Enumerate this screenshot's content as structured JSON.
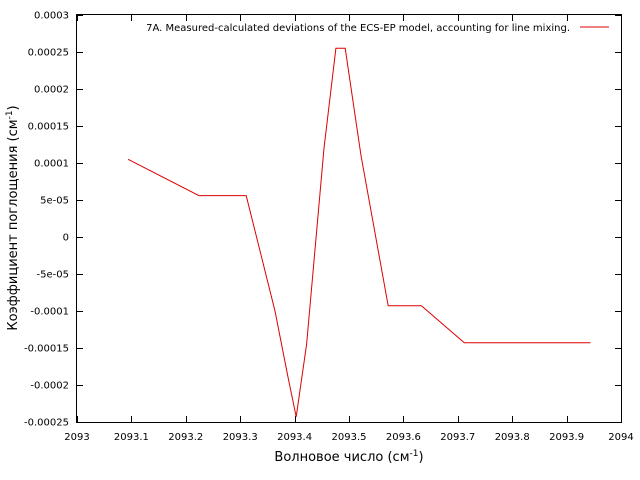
{
  "chart_data": {
    "type": "line",
    "xlabel": "Волновое число (см-1)",
    "xlabel_main": "Волновое число (см",
    "xlabel_sup": "-1",
    "xlabel_close": ")",
    "ylabel": "Коэффициент поглощения (см-1)",
    "ylabel_main": "Коэффициент поглощения (см",
    "ylabel_sup": "-1",
    "ylabel_close": ")",
    "xlim": [
      2093,
      2094
    ],
    "ylim": [
      -0.00025,
      0.0003
    ],
    "x_ticks": [
      2093,
      2093.1,
      2093.2,
      2093.3,
      2093.4,
      2093.5,
      2093.6,
      2093.7,
      2093.8,
      2093.9,
      2094
    ],
    "x_tick_labels": [
      "2093",
      "2093.1",
      "2093.2",
      "2093.3",
      "2093.4",
      "2093.5",
      "2093.6",
      "2093.7",
      "2093.8",
      "2093.9",
      "2094"
    ],
    "y_ticks": [
      -0.00025,
      -0.0002,
      -0.00015,
      -0.0001,
      -5e-05,
      0,
      5e-05,
      0.0001,
      0.00015,
      0.0002,
      0.00025,
      0.0003
    ],
    "y_tick_labels": [
      "-0.00025",
      "-0.0002",
      "-0.00015",
      "-0.0001",
      "-5e-05",
      "0",
      "5e-05",
      "0.0001",
      "0.00015",
      "0.0002",
      "0.00025",
      "0.0003"
    ],
    "grid": false,
    "legend_position": "top-right",
    "series": [
      {
        "name": "7A. Measured-calculated deviations of the ECS-EP model, accounting for line mixing.",
        "color": "#dd0000",
        "x": [
          2093.094,
          2093.224,
          2093.311,
          2093.364,
          2093.388,
          2093.403,
          2093.422,
          2093.454,
          2093.476,
          2093.493,
          2093.522,
          2093.572,
          2093.633,
          2093.712,
          2093.944
        ],
        "y": [
          0.000105,
          5.6e-05,
          5.6e-05,
          -0.0001,
          -0.00019,
          -0.000243,
          -0.000145,
          0.00012,
          0.000255,
          0.000255,
          0.00011,
          -9.3e-05,
          -9.3e-05,
          -0.000143,
          -0.000143
        ]
      }
    ]
  }
}
